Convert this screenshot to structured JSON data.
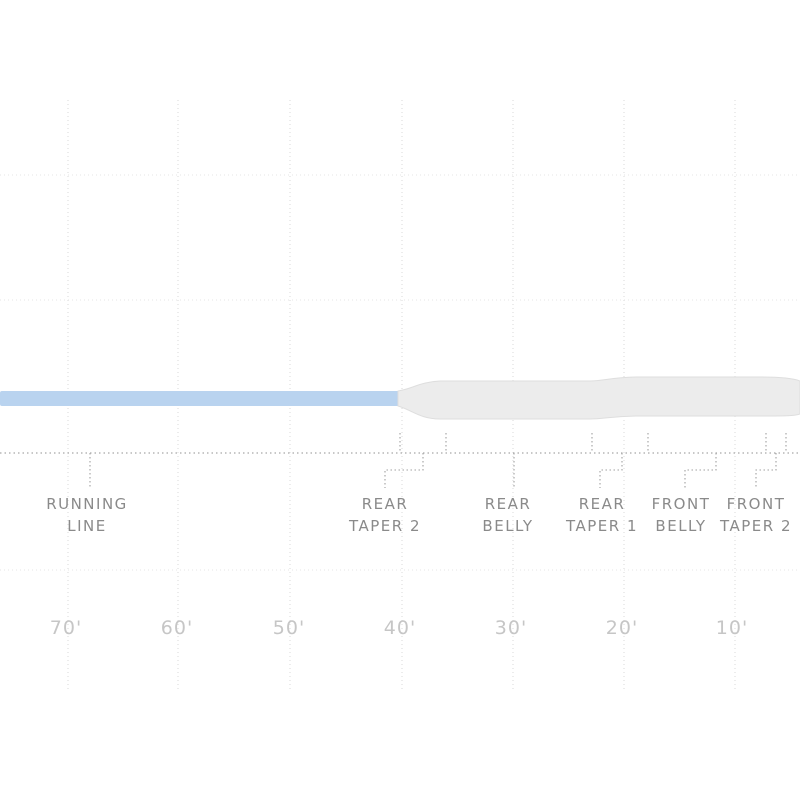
{
  "segments": [
    {
      "id": "running-line",
      "line1": "RUNNING",
      "line2": "LINE"
    },
    {
      "id": "rear-taper-2",
      "line1": "REAR",
      "line2": "TAPER 2"
    },
    {
      "id": "rear-belly",
      "line1": "REAR",
      "line2": "BELLY"
    },
    {
      "id": "rear-taper-1",
      "line1": "REAR",
      "line2": "TAPER 1"
    },
    {
      "id": "front-belly",
      "line1": "FRONT",
      "line2": "BELLY"
    },
    {
      "id": "front-taper-2",
      "line1": "FRONT",
      "line2": "TAPER 2"
    }
  ],
  "distance_axis": [
    "70'",
    "60'",
    "50'",
    "40'",
    "30'",
    "20'",
    "10'"
  ],
  "colors": {
    "running_line": "#b9d3ef",
    "head": "#ececec",
    "head_shadow": "#dddddd",
    "grid": "#e6e6e6",
    "label": "#8a8a8a",
    "axis_label": "#c6c6c6"
  }
}
